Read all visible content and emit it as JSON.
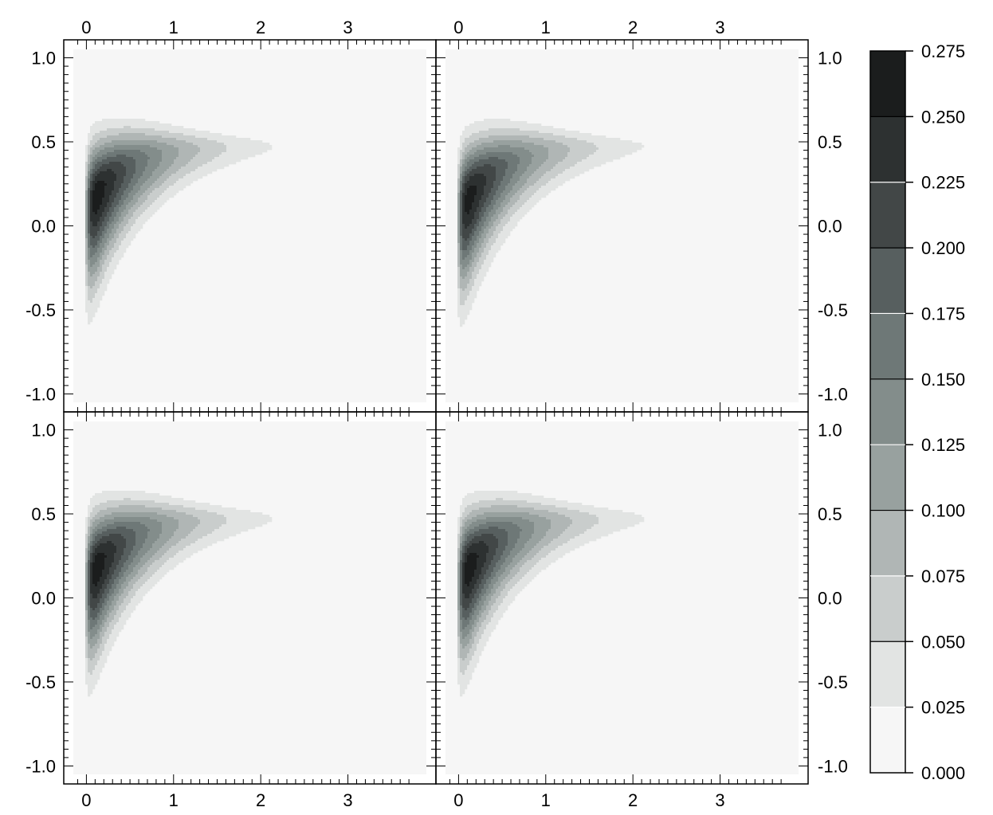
{
  "chart_data": {
    "type": "contour",
    "layout": "2x2 grid of filled contour plots with shared colorbar",
    "x_ticks": [
      0,
      1,
      2,
      3
    ],
    "y_ticks": [
      -1.0,
      -0.5,
      0.0,
      0.5,
      1.0
    ],
    "x_tick_labels": [
      "0",
      "1",
      "2",
      "3"
    ],
    "y_tick_labels": [
      "-1.0",
      "-0.5",
      "0.0",
      "0.5",
      "1.0"
    ],
    "xlim": [
      -0.15,
      3.9
    ],
    "ylim": [
      -1.05,
      1.05
    ],
    "colorbar": {
      "levels": [
        0.0,
        0.025,
        0.05,
        0.075,
        0.1,
        0.125,
        0.15,
        0.175,
        0.2,
        0.225,
        0.25,
        0.275
      ],
      "tick_labels": [
        "0.000",
        "0.025",
        "0.050",
        "0.075",
        "0.100",
        "0.125",
        "0.150",
        "0.175",
        "0.200",
        "0.225",
        "0.250",
        "0.275"
      ],
      "colors": [
        "#f6f6f6",
        "#e2e4e3",
        "#c9cdcc",
        "#b0b6b5",
        "#98a19f",
        "#838d8b",
        "#6e7877",
        "#575f5f",
        "#424747",
        "#2d3131",
        "#1b1d1d"
      ]
    },
    "panels": [
      {
        "id": "top-left",
        "peak": {
          "x": 0.08,
          "y": 0.1
        }
      },
      {
        "id": "top-right",
        "peak": {
          "x": 0.06,
          "y": 0.08
        }
      },
      {
        "id": "bottom-left",
        "peak": {
          "x": 0.08,
          "y": 0.1
        }
      },
      {
        "id": "bottom-right",
        "peak": {
          "x": 0.08,
          "y": 0.1
        }
      }
    ],
    "grid": false
  }
}
